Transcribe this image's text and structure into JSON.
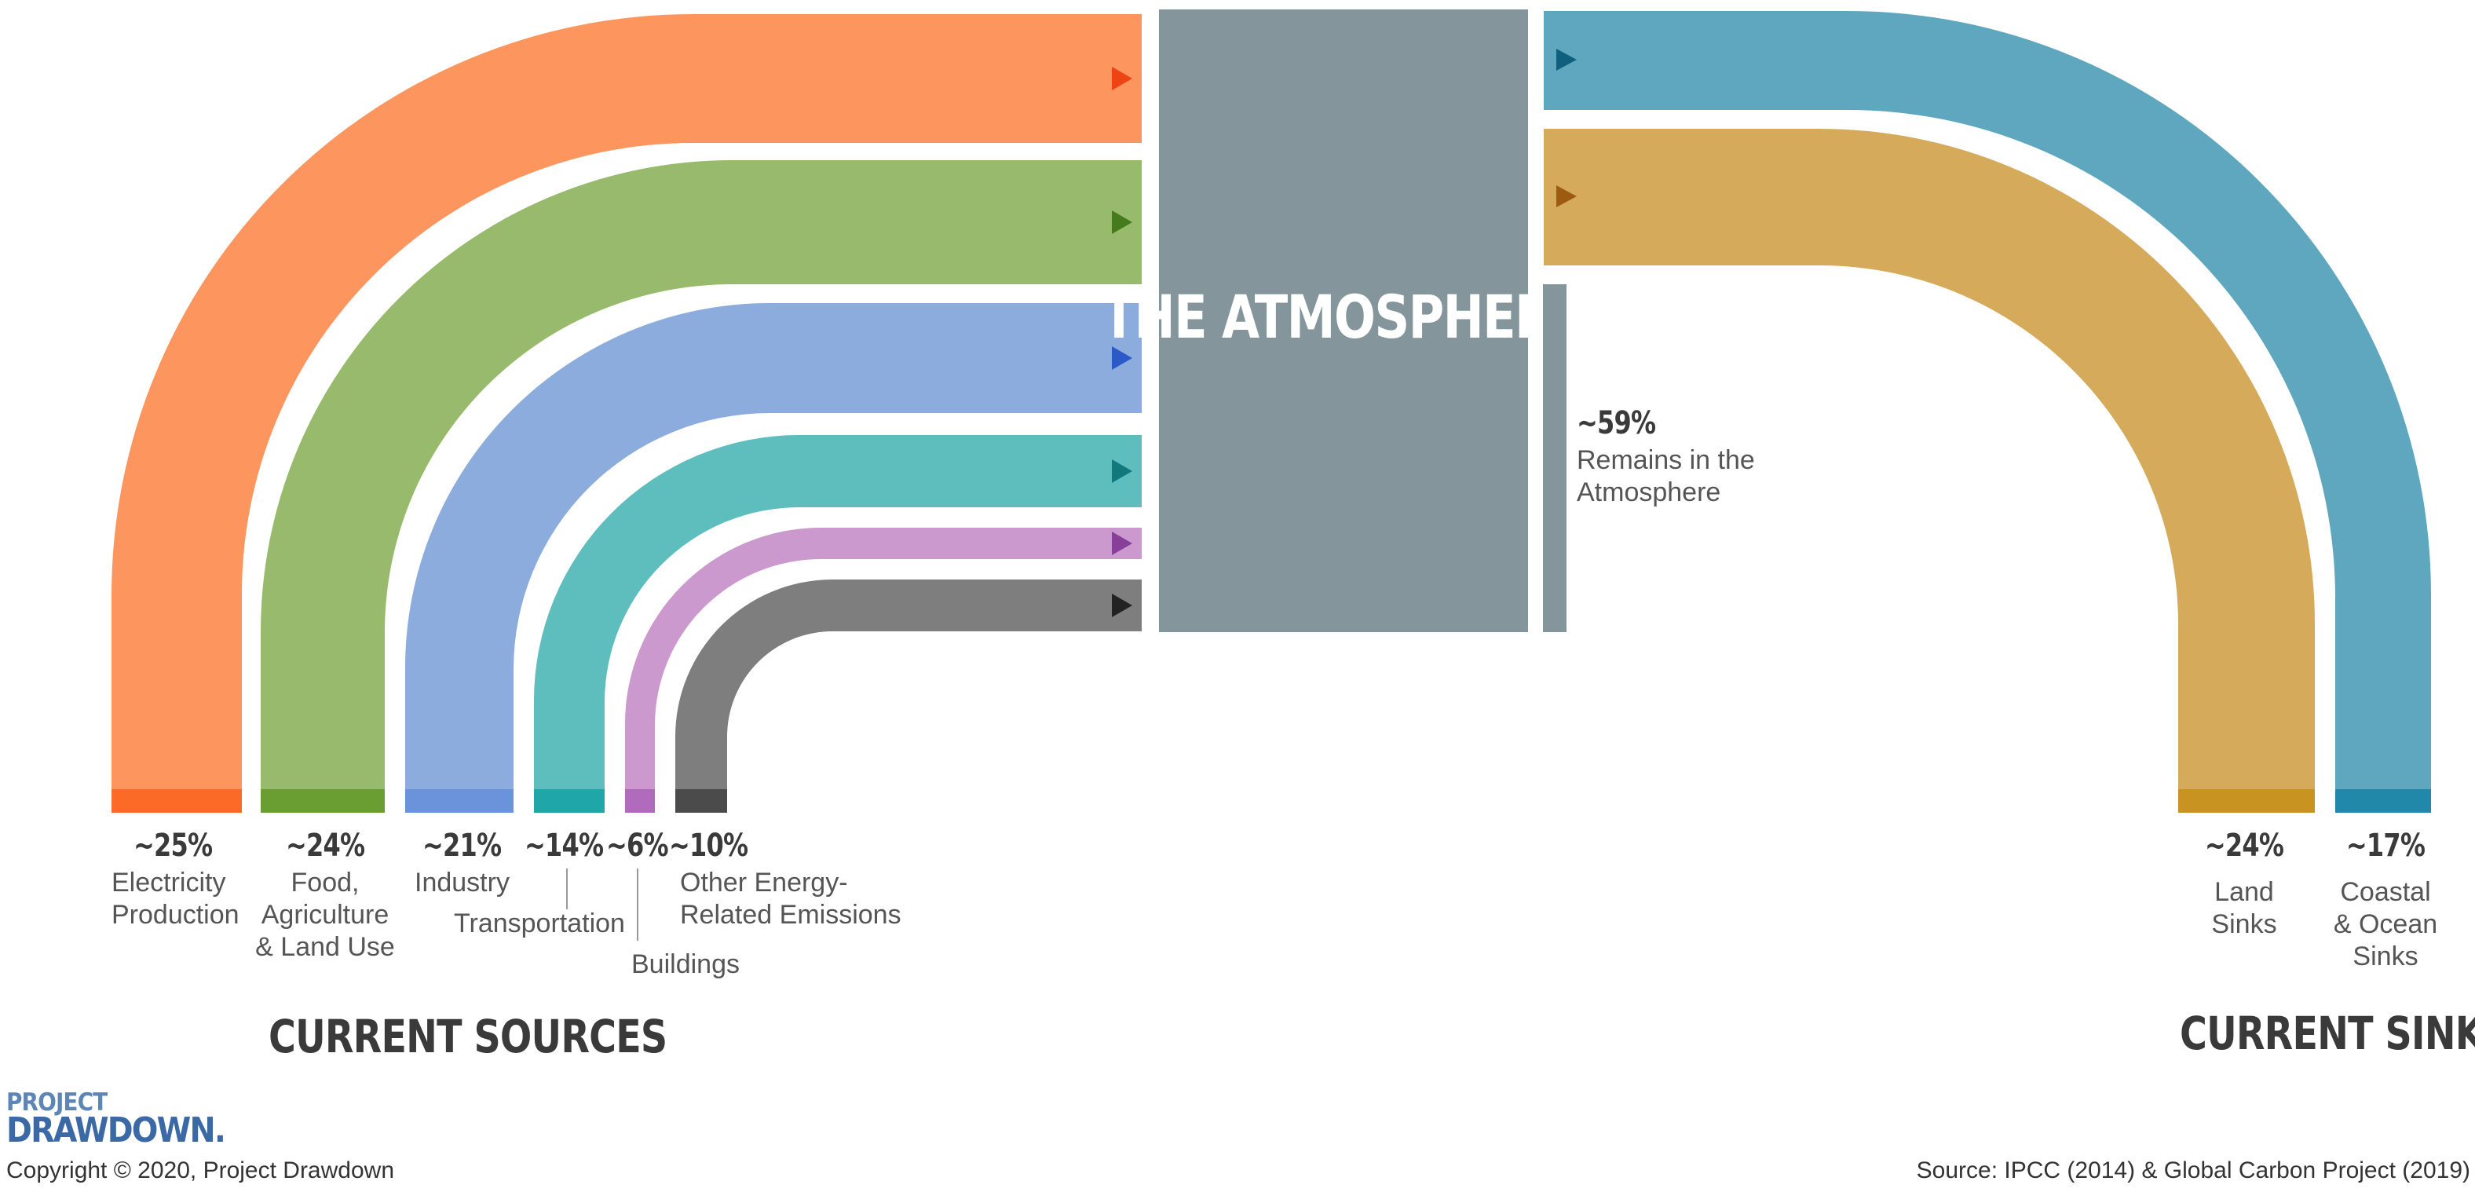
{
  "center": {
    "label": "THE ATMOSPHERE",
    "color": "#84969c"
  },
  "sources": [
    {
      "pct": "~25%",
      "label": "Electricity\nProduction",
      "color": "#fd955f",
      "cap": "#fb6a26",
      "arrow": "#ee4312"
    },
    {
      "pct": "~24%",
      "label": "Food,\nAgriculture\n& Land Use",
      "color": "#97ba6c",
      "cap": "#6b9e32",
      "arrow": "#457b1c"
    },
    {
      "pct": "~21%",
      "label": "Industry",
      "color": "#8cacde",
      "cap": "#6a93dc",
      "arrow": "#2c59c8"
    },
    {
      "pct": "~14%",
      "label": "Transportation",
      "color": "#5ebdbd",
      "cap": "#1fa6a8",
      "arrow": "#13787c"
    },
    {
      "pct": "~6%",
      "label": "Buildings",
      "color": "#cc99ce",
      "cap": "#b06bbd",
      "arrow": "#873f99"
    },
    {
      "pct": "~10%",
      "label": "Other Energy-\nRelated Emissions",
      "color": "#7e7e7e",
      "cap": "#4b4b4b",
      "arrow": "#222222"
    }
  ],
  "sinks": [
    {
      "pct": "~24%",
      "label": "Land\nSinks",
      "color": "#d5aa5b",
      "cap": "#c89320",
      "arrow": "#9c5b10"
    },
    {
      "pct": "~17%",
      "label": "Coastal\n& Ocean\nSinks",
      "color": "#5ea7bf",
      "cap": "#2288a9",
      "arrow": "#0f5f7e"
    }
  ],
  "remains": {
    "pct": "~59%",
    "label": "Remains in the\nAtmosphere"
  },
  "headings": {
    "sources": "CURRENT SOURCES",
    "sinks": "CURRENT SINKS"
  },
  "logo": {
    "top": "PROJECT",
    "main": "DRAWDOWN."
  },
  "copyright": "Copyright © 2020, Project Drawdown",
  "source_note": "Source: IPCC (2014) & Global Carbon Project (2019)"
}
